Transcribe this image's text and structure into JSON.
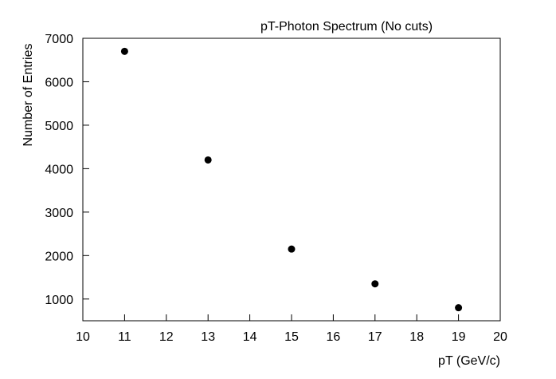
{
  "chart_data": {
    "type": "scatter",
    "title": "pT-Photon Spectrum (No cuts)",
    "xlabel": "pT (GeV/c)",
    "ylabel": "Number of Entries",
    "xlim": [
      10,
      20
    ],
    "ylim": [
      500,
      7000
    ],
    "xticks": [
      10,
      11,
      12,
      13,
      14,
      15,
      16,
      17,
      18,
      19,
      20
    ],
    "yticks": [
      1000,
      2000,
      3000,
      4000,
      5000,
      6000,
      7000
    ],
    "grid": false,
    "legend": "none",
    "marker_color": "#000000",
    "series": [
      {
        "x": [
          11,
          13,
          15,
          17,
          19
        ],
        "y": [
          6700,
          4200,
          2150,
          1350,
          800
        ]
      }
    ]
  }
}
